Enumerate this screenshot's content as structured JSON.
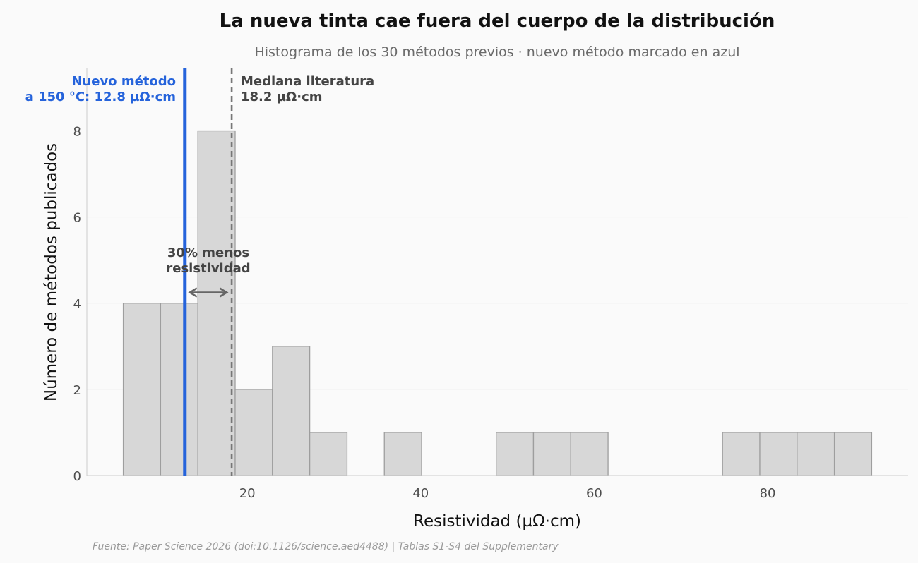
{
  "chart_data": {
    "type": "bar",
    "title": "La nueva tinta cae fuera del cuerpo de la distribución",
    "subtitle": "Histograma de los 30 métodos previos · nuevo método marcado en azul",
    "xlabel": "Resistividad (µΩ·cm)",
    "ylabel": "Número de métodos publicados",
    "xlim": [
      1.5,
      96.2
    ],
    "ylim": [
      0,
      9.45
    ],
    "xticks": [
      20,
      40,
      60,
      80
    ],
    "yticks": [
      0,
      2,
      4,
      6,
      8
    ],
    "grid": "horizontal",
    "bins": [
      {
        "x0": 5.7,
        "x1": 10.0,
        "count": 4
      },
      {
        "x0": 10.0,
        "x1": 14.3,
        "count": 4
      },
      {
        "x0": 14.3,
        "x1": 18.6,
        "count": 8
      },
      {
        "x0": 18.6,
        "x1": 22.9,
        "count": 2
      },
      {
        "x0": 22.9,
        "x1": 27.2,
        "count": 3
      },
      {
        "x0": 27.2,
        "x1": 31.5,
        "count": 1
      },
      {
        "x0": 35.8,
        "x1": 40.1,
        "count": 1
      },
      {
        "x0": 48.7,
        "x1": 53.0,
        "count": 1
      },
      {
        "x0": 53.0,
        "x1": 57.3,
        "count": 1
      },
      {
        "x0": 57.3,
        "x1": 61.6,
        "count": 1
      },
      {
        "x0": 74.8,
        "x1": 79.1,
        "count": 1
      },
      {
        "x0": 79.1,
        "x1": 83.4,
        "count": 1
      },
      {
        "x0": 83.4,
        "x1": 87.7,
        "count": 1
      },
      {
        "x0": 87.7,
        "x1": 92.0,
        "count": 1
      }
    ],
    "new_method": {
      "value": 12.8,
      "label_line1": "Nuevo método",
      "label_line2": "a 150 °C: 12.8 µΩ·cm",
      "color": "#2563db"
    },
    "median": {
      "value": 18.2,
      "label_line1": "Mediana literatura",
      "label_line2": "18.2 µΩ·cm",
      "color": "#777777"
    },
    "gap_annotation": {
      "line1": "30% menos",
      "line2": "resistividad",
      "y": 4.25
    },
    "colors": {
      "bar_fill": "#d7d7d7",
      "bar_stroke": "#9e9e9e",
      "background": "#fafafa",
      "annotation_text": "#444444"
    }
  },
  "source": "Fuente: Paper Science 2026 (doi:10.1126/science.aed4488) | Tablas S1-S4 del Supplementary"
}
